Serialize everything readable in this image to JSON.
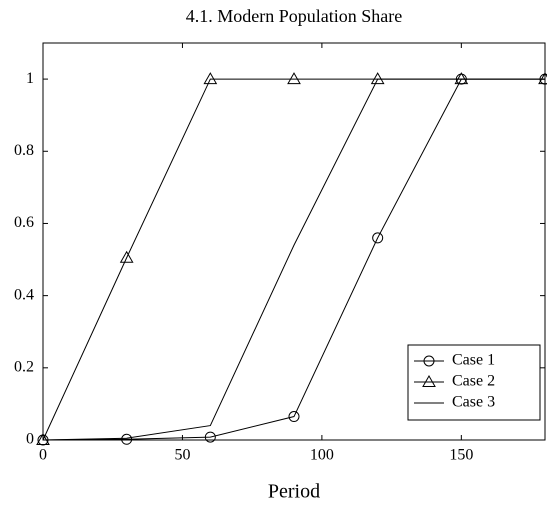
{
  "chart_data": {
    "type": "line",
    "title": "4.1. Modern Population Share",
    "xlabel": "Period",
    "x": [
      0,
      30,
      60,
      90,
      120,
      150,
      180
    ],
    "series": [
      {
        "name": "Case 1",
        "color": "#000000",
        "marker": "circle",
        "values": [
          0,
          0.002,
          0.008,
          0.065,
          0.56,
          1,
          1
        ]
      },
      {
        "name": "Case 2",
        "color": "#000000",
        "marker": "triangle",
        "values": [
          0,
          0.505,
          1,
          1,
          1,
          1,
          1
        ]
      },
      {
        "name": "Case 3",
        "color": "#000000",
        "marker": "none",
        "values": [
          0,
          0.005,
          0.04,
          0.54,
          1,
          1,
          1
        ]
      }
    ],
    "xlim": [
      0,
      180
    ],
    "xticks": [
      0,
      50,
      100,
      150
    ],
    "ylim": [
      0,
      1.1
    ],
    "yticks": [
      0,
      0.2,
      0.4,
      0.6,
      0.8,
      1
    ],
    "grid": false,
    "legend": "lower right"
  }
}
